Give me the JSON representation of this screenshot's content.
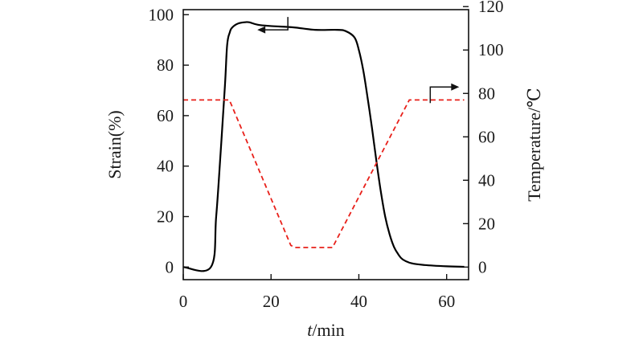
{
  "chart_data": {
    "type": "line",
    "xlabel": {
      "italic": "t",
      "rest": "/min"
    },
    "ylabel_left": "Strain(%)",
    "ylabel_right": "Temperature/℃",
    "xlim": [
      0,
      65
    ],
    "ylim_left": [
      -5,
      102
    ],
    "ylim_right": [
      -5.8,
      118.6
    ],
    "xticks": [
      0,
      20,
      40,
      60
    ],
    "yticks_left": [
      0,
      20,
      40,
      60,
      80,
      100
    ],
    "yticks_right": [
      0,
      20,
      40,
      60,
      80,
      100,
      120
    ],
    "series": [
      {
        "axis": "left",
        "style": "solid",
        "color": "#000000",
        "x": [
          0,
          6.3,
          7.5,
          8.5,
          9.5,
          10,
          10.6,
          11.2,
          12.5,
          14,
          15,
          17,
          20,
          25,
          30,
          35,
          37,
          39,
          40,
          41,
          42,
          43,
          44,
          45,
          46,
          47,
          48,
          49,
          50,
          52,
          55,
          60,
          64
        ],
        "values": [
          0,
          0,
          20,
          45,
          72,
          88,
          93,
          95,
          96.5,
          97,
          97,
          96,
          95.5,
          95,
          94,
          94,
          93.5,
          91,
          86,
          78,
          67,
          55,
          42,
          30,
          20,
          13,
          8,
          5,
          3,
          1.5,
          0.8,
          0.3,
          0.1
        ]
      },
      {
        "axis": "right",
        "style": "dashed",
        "color": "#e8201a",
        "x": [
          0,
          10.5,
          24.5,
          25.5,
          34,
          51.5,
          64
        ],
        "values": [
          77,
          77,
          10,
          9,
          9,
          77,
          77
        ]
      }
    ],
    "annotations": [
      {
        "type": "arrow",
        "points_to": "left-axis",
        "near": {
          "x": 22,
          "y": 94
        }
      },
      {
        "type": "arrow",
        "points_to": "right-axis",
        "near": {
          "x": 57,
          "y": 80
        }
      }
    ]
  }
}
